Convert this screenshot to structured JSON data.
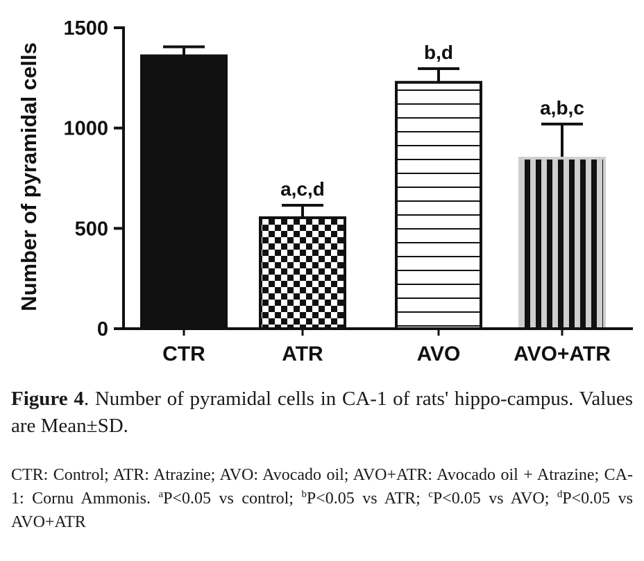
{
  "chart_data": {
    "type": "bar",
    "ylabel": "Number of pyramidal cells",
    "ylim": [
      0,
      1500
    ],
    "yticks": [
      0,
      500,
      1000,
      1500
    ],
    "grid": false,
    "categories": [
      "CTR",
      "ATR",
      "AVO",
      "AVO+ATR"
    ],
    "values": [
      1360,
      553,
      1228,
      850
    ],
    "errors": [
      45,
      62,
      68,
      170
    ],
    "annotations": [
      "",
      "a,c,d",
      "b,d",
      "a,b,c"
    ],
    "patterns": [
      "solid-black",
      "checkerboard",
      "horizontal-stripes",
      "vertical-stripes"
    ],
    "colors": {
      "ink": "#111111",
      "fill_light": "#ffffff",
      "frame_gray": "#cfcfcf"
    }
  },
  "caption": {
    "label": "Figure 4",
    "text": ". Number of pyramidal cells in CA-1 of rats' hippo-campus. Values are Mean±SD."
  },
  "footnote": {
    "abbreviations": "CTR: Control; ATR: Atrazine; AVO: Avocado oil; AVO+ATR: Avocado oil + Atrazine; CA-1: Cornu Ammonis. ",
    "notes": [
      {
        "sup": "a",
        "text": "P<0.05 vs control; "
      },
      {
        "sup": "b",
        "text": "P<0.05 vs ATR; "
      },
      {
        "sup": "c",
        "text": "P<0.05 vs AVO; "
      },
      {
        "sup": "d",
        "text": "P<0.05 vs AVO+ATR"
      }
    ]
  }
}
